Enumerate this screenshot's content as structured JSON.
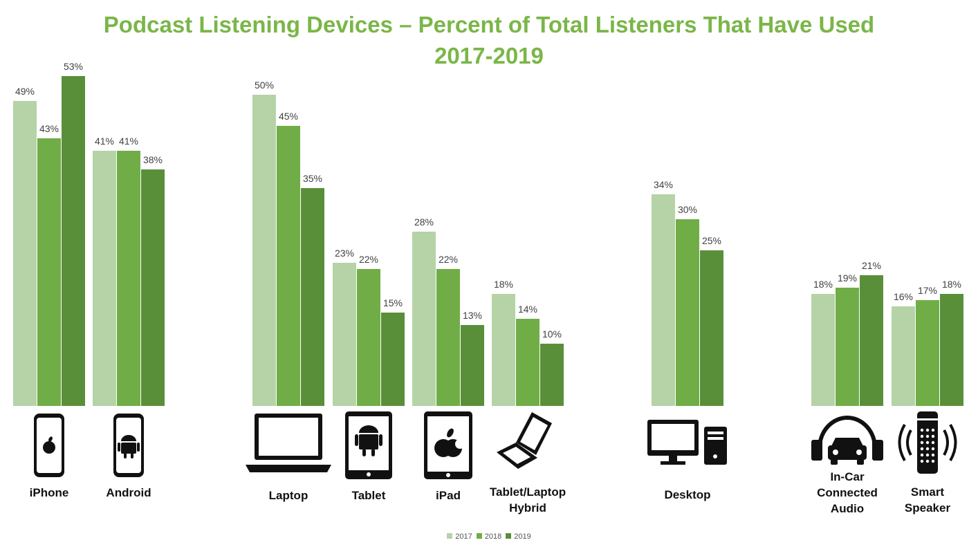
{
  "chart_data": {
    "type": "bar",
    "title": "Podcast Listening Devices – Percent of Total Listeners That Have Used",
    "subtitle": "2017-2019",
    "categories": [
      "iPhone",
      "Android",
      "Laptop",
      "Tablet",
      "iPad",
      "Tablet/Laptop Hybrid",
      "Desktop",
      "In-Car Connected Audio",
      "Smart Speaker"
    ],
    "category_labels": [
      [
        "iPhone"
      ],
      [
        "Android"
      ],
      [
        "Laptop"
      ],
      [
        "Tablet"
      ],
      [
        "iPad"
      ],
      [
        "Tablet/Laptop",
        "Hybrid"
      ],
      [
        "Desktop"
      ],
      [
        "In-Car",
        "Connected",
        "Audio"
      ],
      [
        "Smart",
        "Speaker"
      ]
    ],
    "category_icons": [
      "iphone-icon",
      "android-phone-icon",
      "laptop-icon",
      "android-tablet-icon",
      "ipad-icon",
      "hybrid-laptop-icon",
      "desktop-computer-icon",
      "car-headphones-icon",
      "smart-speaker-icon"
    ],
    "series": [
      {
        "name": "2017",
        "color": "#b5d3a7",
        "values": [
          49,
          41,
          50,
          23,
          28,
          18,
          34,
          18,
          16
        ]
      },
      {
        "name": "2018",
        "color": "#70ad47",
        "values": [
          43,
          41,
          45,
          22,
          22,
          14,
          30,
          19,
          17
        ]
      },
      {
        "name": "2019",
        "color": "#5a8f3a",
        "values": [
          53,
          38,
          35,
          15,
          13,
          10,
          25,
          21,
          18
        ]
      }
    ],
    "value_suffix": "%",
    "ylim": [
      0,
      60
    ],
    "grid": false,
    "legend_position": "bottom"
  }
}
